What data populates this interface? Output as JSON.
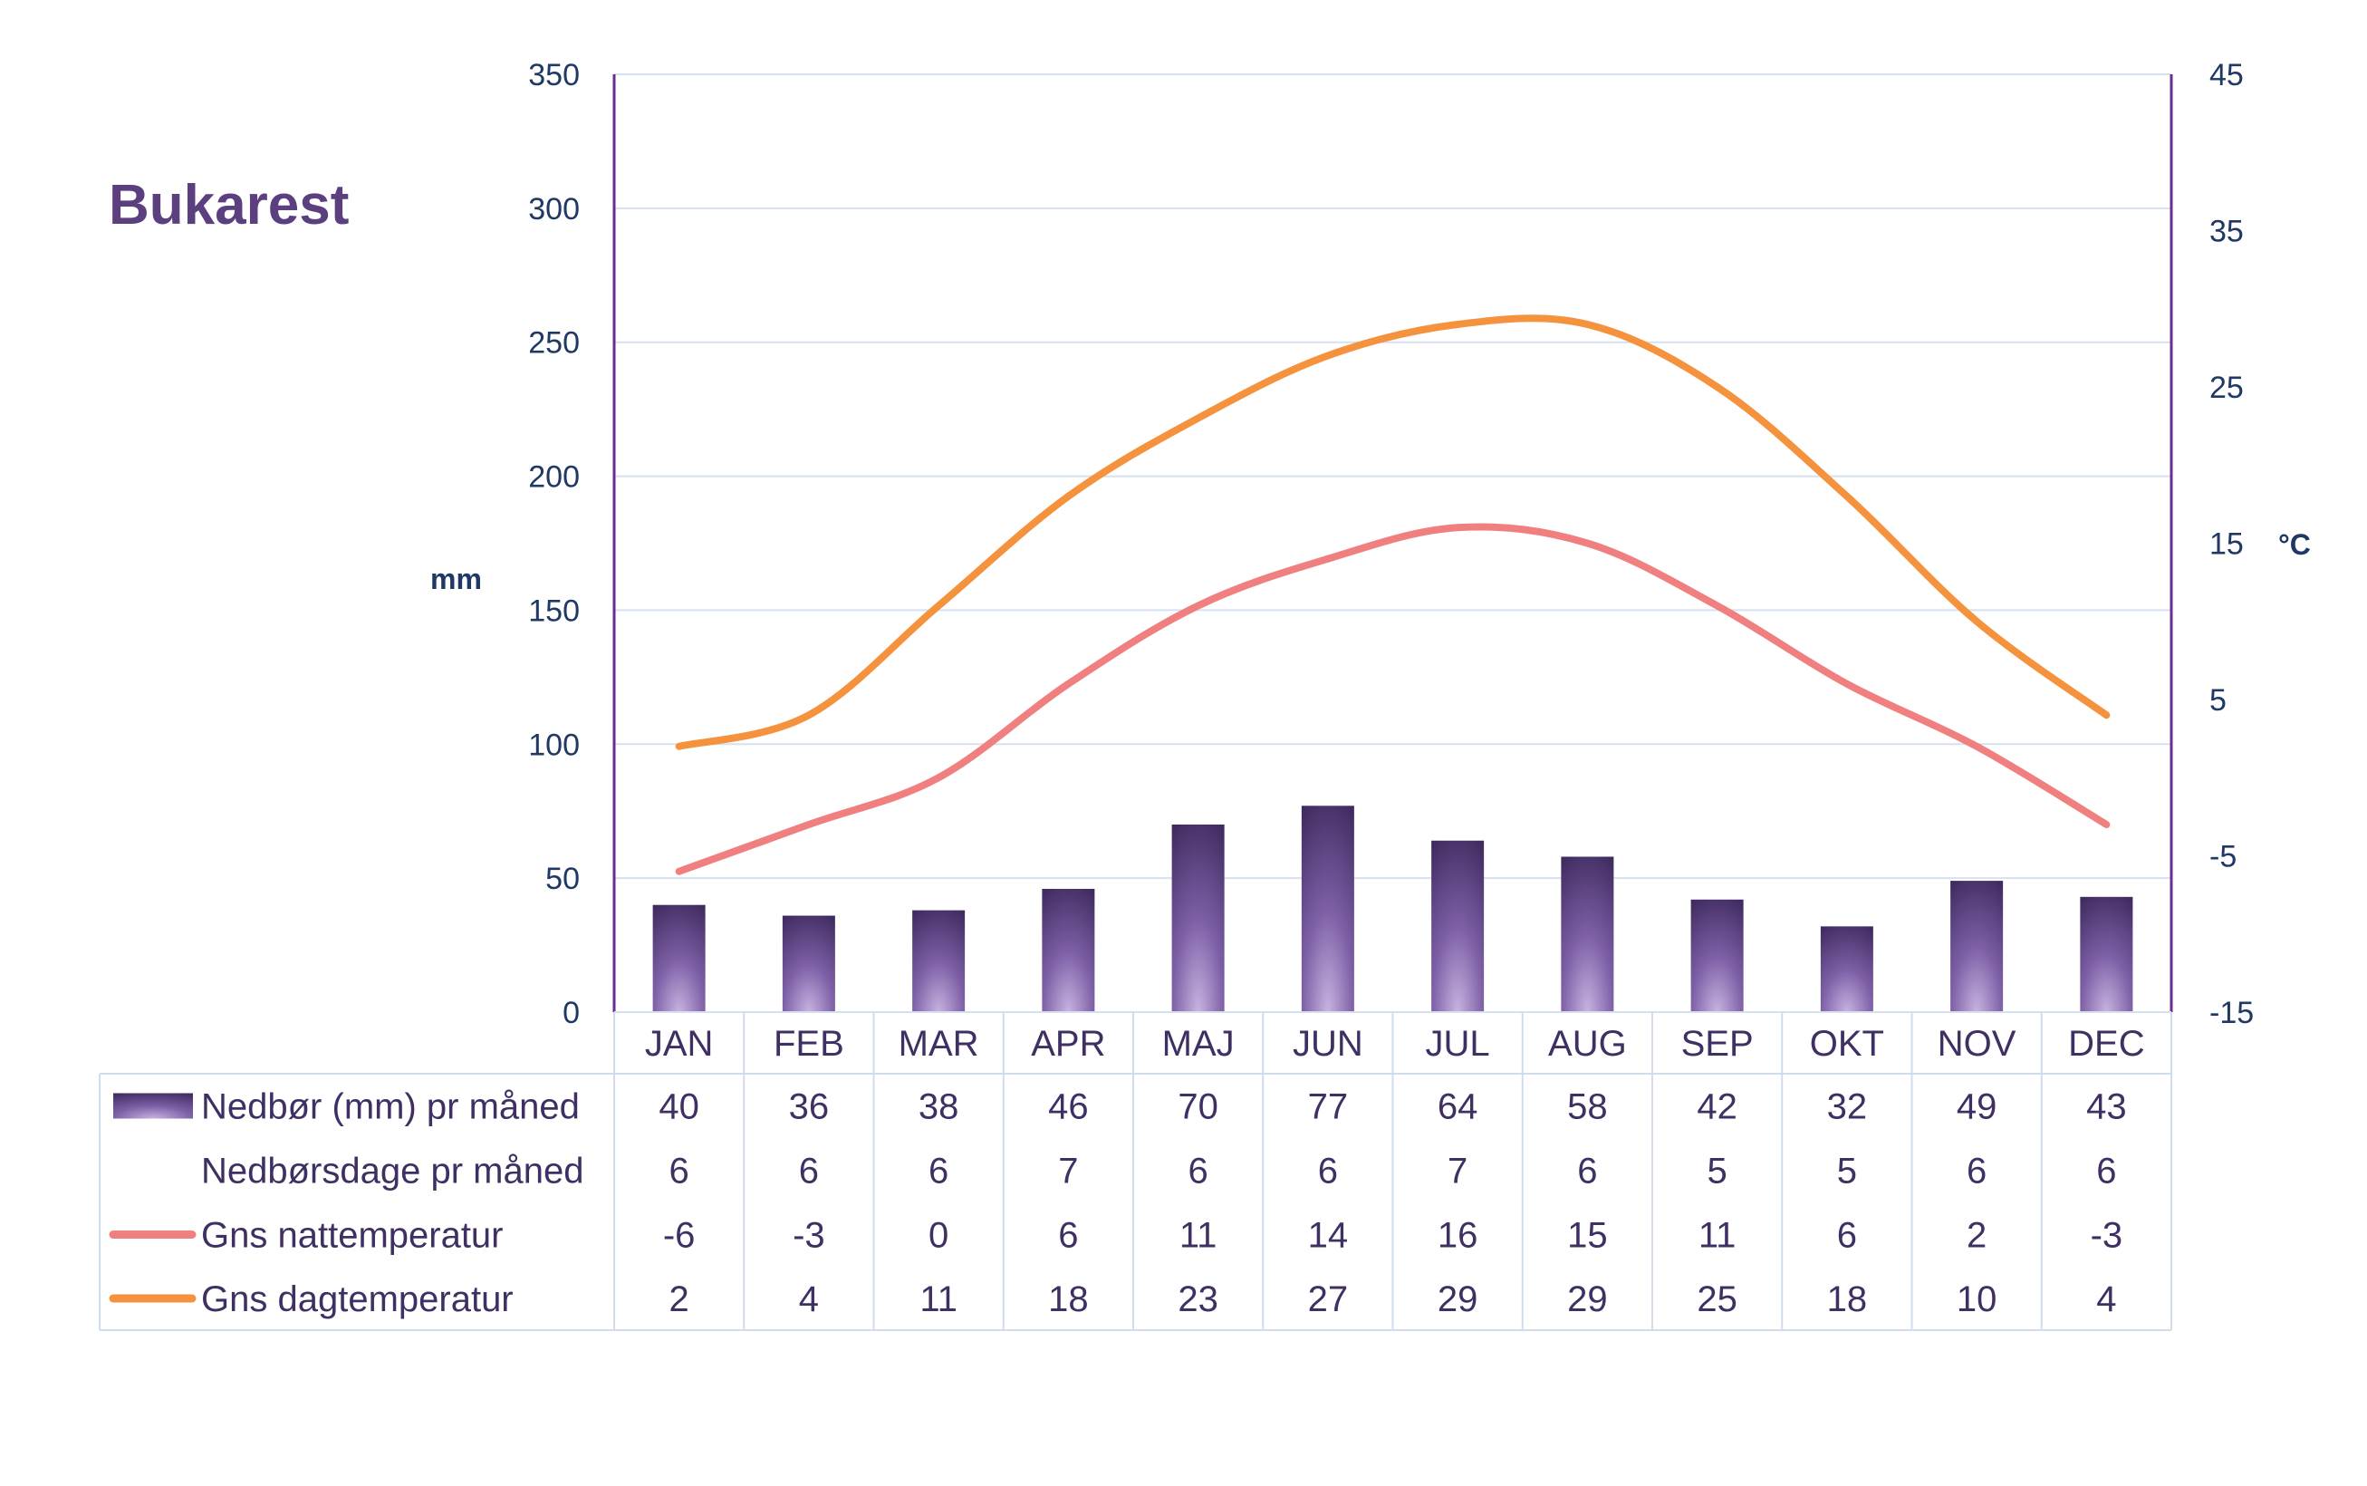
{
  "chart_data": {
    "type": "bar",
    "title": "Bukarest",
    "categories": [
      "JAN",
      "FEB",
      "MAR",
      "APR",
      "MAJ",
      "JUN",
      "JUL",
      "AUG",
      "SEP",
      "OKT",
      "NOV",
      "DEC"
    ],
    "ylabel_left": "mm",
    "ylabel_right": "°C",
    "ylim_left": [
      0,
      350
    ],
    "ylim_right": [
      -15,
      45
    ],
    "yticks_left": [
      "0",
      "50",
      "100",
      "150",
      "200",
      "250",
      "300",
      "350"
    ],
    "yticks_right": [
      "-15",
      "-5",
      "5",
      "15",
      "25",
      "35",
      "45"
    ],
    "grid": true,
    "series": [
      {
        "name": "Nedbør (mm) pr måned",
        "kind": "bar",
        "axis": "left",
        "color": "#5b3f7e",
        "values": [
          40,
          36,
          38,
          46,
          70,
          77,
          64,
          58,
          42,
          32,
          49,
          43
        ]
      },
      {
        "name": "Nedbørsdage pr måned",
        "kind": "table",
        "axis": "none",
        "values": [
          6,
          6,
          6,
          7,
          6,
          6,
          7,
          6,
          5,
          5,
          6,
          6
        ]
      },
      {
        "name": "Gns nattemperatur",
        "kind": "line",
        "axis": "right",
        "color": "#f08080",
        "values": [
          -6,
          -3,
          0,
          6,
          11,
          14,
          16,
          15,
          11,
          6,
          2,
          -3
        ]
      },
      {
        "name": "Gns dagtemperatur",
        "kind": "line",
        "axis": "right",
        "color": "#f5923e",
        "values": [
          2,
          4,
          11,
          18,
          23,
          27,
          29,
          29,
          25,
          18,
          10,
          4
        ]
      }
    ]
  }
}
